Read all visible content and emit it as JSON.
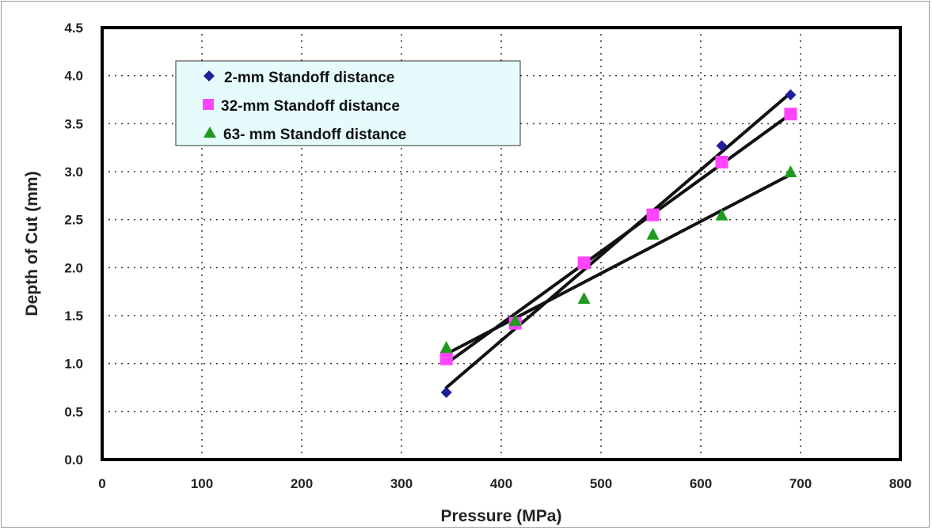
{
  "chart_data": {
    "type": "scatter",
    "xlabel": "Pressure (MPa)",
    "ylabel": "Depth of Cut (mm)",
    "xlim": [
      0,
      800
    ],
    "ylim": [
      0,
      4.5
    ],
    "x_ticks": [
      "0",
      "100",
      "200",
      "300",
      "400",
      "500",
      "600",
      "700",
      "800"
    ],
    "y_ticks": [
      "0.0",
      "0.5",
      "1.0",
      "1.5",
      "2.0",
      "2.5",
      "3.0",
      "3.5",
      "4.0",
      "4.5"
    ],
    "grid": "dotted",
    "legend_position": "top-left",
    "series": [
      {
        "name": "2-mm Standoff distance",
        "marker": "diamond",
        "color": "#1f1f99",
        "x": [
          345,
          414,
          483,
          552,
          621,
          690
        ],
        "y": [
          0.7,
          1.42,
          2.05,
          2.55,
          3.27,
          3.8
        ],
        "trendline": [
          [
            345,
            0.75
          ],
          [
            690,
            3.82
          ]
        ]
      },
      {
        "name": "32-mm Standoff distance",
        "marker": "square",
        "color": "#ff44ff",
        "x": [
          345,
          414,
          483,
          552,
          621,
          690
        ],
        "y": [
          1.05,
          1.42,
          2.05,
          2.55,
          3.1,
          3.6
        ],
        "trendline": [
          [
            345,
            1.0
          ],
          [
            690,
            3.6
          ]
        ]
      },
      {
        "name": "63- mm Standoff distance",
        "marker": "triangle",
        "color": "#1f9b1f",
        "x": [
          345,
          414,
          483,
          552,
          621,
          690
        ],
        "y": [
          1.17,
          1.45,
          1.68,
          2.35,
          2.55,
          3.0
        ],
        "trendline": [
          [
            345,
            1.1
          ],
          [
            690,
            2.97
          ]
        ]
      }
    ]
  }
}
